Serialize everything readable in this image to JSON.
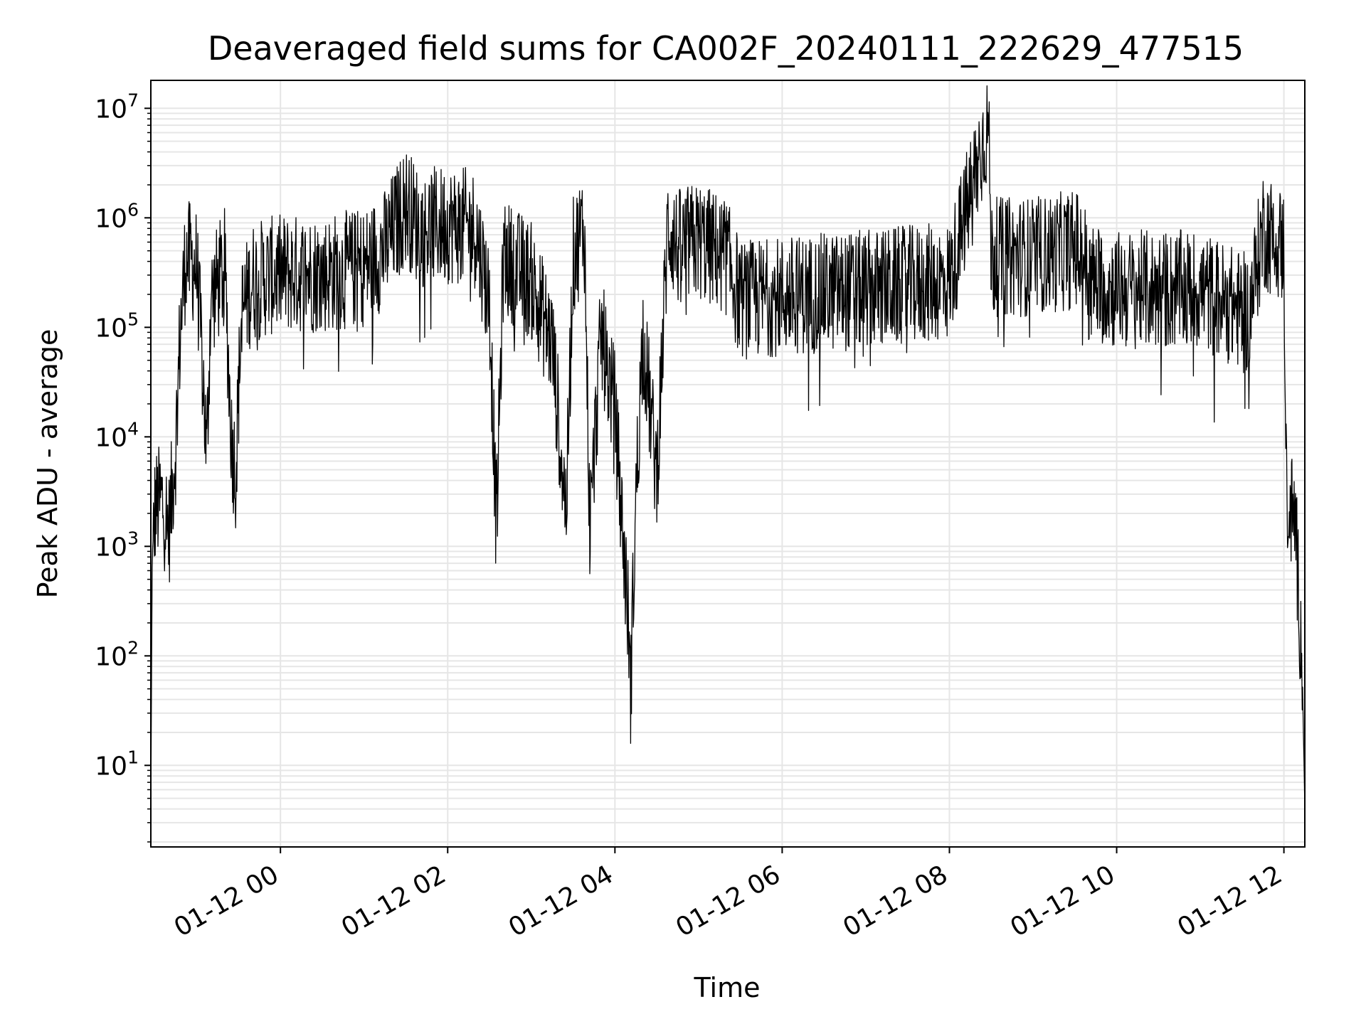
{
  "chart_data": {
    "type": "line",
    "title": "Deaveraged field sums for CA002F_20240111_222629_477515",
    "xlabel": "Time",
    "ylabel": "Peak ADU - average",
    "yscale": "log",
    "ylim": [
      1.8,
      18000000
    ],
    "xlim": [
      "2024-01-11 22:27",
      "2024-01-12 12:15"
    ],
    "grid": true,
    "legend": "none",
    "line_color": "#000000",
    "x_ticks": [
      {
        "value": "2024-01-12 00:00",
        "label": "01-12 00"
      },
      {
        "value": "2024-01-12 02:00",
        "label": "01-12 02"
      },
      {
        "value": "2024-01-12 04:00",
        "label": "01-12 04"
      },
      {
        "value": "2024-01-12 06:00",
        "label": "01-12 06"
      },
      {
        "value": "2024-01-12 08:00",
        "label": "01-12 08"
      },
      {
        "value": "2024-01-12 10:00",
        "label": "01-12 10"
      },
      {
        "value": "2024-01-12 12:00",
        "label": "01-12 12"
      }
    ],
    "y_ticks": [
      {
        "value": 10,
        "base": "10",
        "exp": "1"
      },
      {
        "value": 100,
        "base": "10",
        "exp": "2"
      },
      {
        "value": 1000,
        "base": "10",
        "exp": "3"
      },
      {
        "value": 10000,
        "base": "10",
        "exp": "4"
      },
      {
        "value": 100000,
        "base": "10",
        "exp": "5"
      },
      {
        "value": 1000000,
        "base": "10",
        "exp": "6"
      },
      {
        "value": 10000000,
        "base": "10",
        "exp": "7"
      }
    ],
    "series": [
      {
        "points": [
          [
            "2024-01-11 22:27",
            4
          ],
          [
            "2024-01-11 22:28",
            800
          ],
          [
            "2024-01-11 22:30",
            2500
          ],
          [
            "2024-01-11 22:35",
            3000
          ],
          [
            "2024-01-11 22:40",
            1600
          ],
          [
            "2024-01-11 22:45",
            10000
          ],
          [
            "2024-01-11 22:48",
            100000
          ],
          [
            "2024-01-11 22:52",
            500000
          ],
          [
            "2024-01-11 23:00",
            400000
          ],
          [
            "2024-01-11 23:05",
            30000
          ],
          [
            "2024-01-11 23:07",
            7000
          ],
          [
            "2024-01-11 23:10",
            200000
          ],
          [
            "2024-01-11 23:20",
            400000
          ],
          [
            "2024-01-11 23:25",
            10000
          ],
          [
            "2024-01-11 23:28",
            5500
          ],
          [
            "2024-01-11 23:32",
            150000
          ],
          [
            "2024-01-11 23:40",
            300000
          ],
          [
            "2024-01-12 00:00",
            350000
          ],
          [
            "2024-01-12 00:30",
            350000
          ],
          [
            "2024-01-12 01:00",
            400000
          ],
          [
            "2024-01-12 01:15",
            600000
          ],
          [
            "2024-01-12 01:30",
            1500000
          ],
          [
            "2024-01-12 01:40",
            900000
          ],
          [
            "2024-01-12 02:00",
            1000000
          ],
          [
            "2024-01-12 02:20",
            900000
          ],
          [
            "2024-01-12 02:30",
            200000
          ],
          [
            "2024-01-12 02:35",
            1600
          ],
          [
            "2024-01-12 02:40",
            500000
          ],
          [
            "2024-01-12 03:00",
            300000
          ],
          [
            "2024-01-12 03:15",
            80000
          ],
          [
            "2024-01-12 03:25",
            2400
          ],
          [
            "2024-01-12 03:30",
            500000
          ],
          [
            "2024-01-12 03:38",
            1000000
          ],
          [
            "2024-01-12 03:42",
            1600
          ],
          [
            "2024-01-12 03:50",
            100000
          ],
          [
            "2024-01-12 04:00",
            20000
          ],
          [
            "2024-01-12 04:10",
            200
          ],
          [
            "2024-01-12 04:11",
            45
          ],
          [
            "2024-01-12 04:15",
            3000
          ],
          [
            "2024-01-12 04:20",
            100000
          ],
          [
            "2024-01-12 04:30",
            5000
          ],
          [
            "2024-01-12 04:38",
            1000000
          ],
          [
            "2024-01-12 04:45",
            600000
          ],
          [
            "2024-01-12 05:00",
            700000
          ],
          [
            "2024-01-12 05:20",
            500000
          ],
          [
            "2024-01-12 05:30",
            200000
          ],
          [
            "2024-01-12 06:00",
            220000
          ],
          [
            "2024-01-12 07:00",
            250000
          ],
          [
            "2024-01-12 08:00",
            300000
          ],
          [
            "2024-01-12 08:28",
            9000000
          ],
          [
            "2024-01-12 08:30",
            500000
          ],
          [
            "2024-01-12 09:00",
            500000
          ],
          [
            "2024-01-12 09:35",
            600000
          ],
          [
            "2024-01-12 09:40",
            300000
          ],
          [
            "2024-01-12 10:00",
            250000
          ],
          [
            "2024-01-12 11:00",
            250000
          ],
          [
            "2024-01-12 11:35",
            150000
          ],
          [
            "2024-01-12 11:45",
            900000
          ],
          [
            "2024-01-12 12:00",
            600000
          ],
          [
            "2024-01-12 12:02",
            3000
          ],
          [
            "2024-01-12 12:08",
            2000
          ],
          [
            "2024-01-12 12:13",
            100
          ],
          [
            "2024-01-12 12:15",
            4
          ]
        ]
      }
    ]
  }
}
